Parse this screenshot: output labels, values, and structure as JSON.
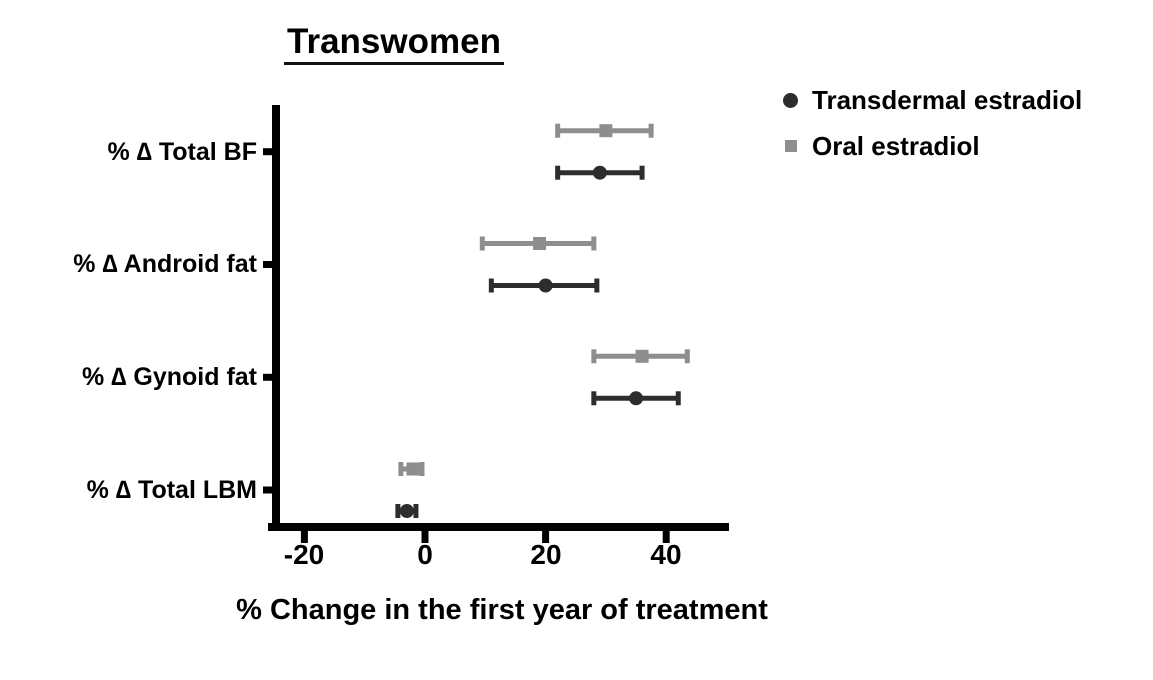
{
  "title": {
    "text": "Transwomen"
  },
  "legend": {
    "items": [
      {
        "label": "Transdermal estradiol",
        "marker": "circle",
        "color": "#2d2d2d"
      },
      {
        "label": "Oral estradiol",
        "marker": "square",
        "color": "#8e8e8e"
      }
    ]
  },
  "chart_data": {
    "type": "scatter",
    "subtype": "horizontal-point-with-error-bars",
    "title": "Transwomen",
    "xlabel": "% Change in the first year of treatment",
    "ylabel": "",
    "categories": [
      "% ∆ Total BF",
      "% ∆ Android fat",
      "% ∆ Gynoid fat",
      "% ∆ Total LBM"
    ],
    "x_ticks": [
      -20,
      0,
      20,
      40
    ],
    "x_tick_labels": [
      "-20",
      "0",
      "20",
      "40"
    ],
    "xlim": [
      -25.5,
      50.5
    ],
    "grid": false,
    "legend_position": "outside-top-right",
    "axis_color": "#000000",
    "series": [
      {
        "name": "Oral estradiol",
        "marker": "square",
        "color": "#8e8e8e",
        "values": [
          30,
          19,
          36,
          -2
        ],
        "error_low": [
          22,
          9.5,
          28,
          -4
        ],
        "error_high": [
          37.5,
          28,
          43.5,
          -0.5
        ]
      },
      {
        "name": "Transdermal estradiol",
        "marker": "circle",
        "color": "#2d2d2d",
        "values": [
          29,
          20,
          35,
          -3
        ],
        "error_low": [
          22,
          11,
          28,
          -4.5
        ],
        "error_high": [
          36,
          28.5,
          42,
          -1.5
        ]
      }
    ]
  }
}
